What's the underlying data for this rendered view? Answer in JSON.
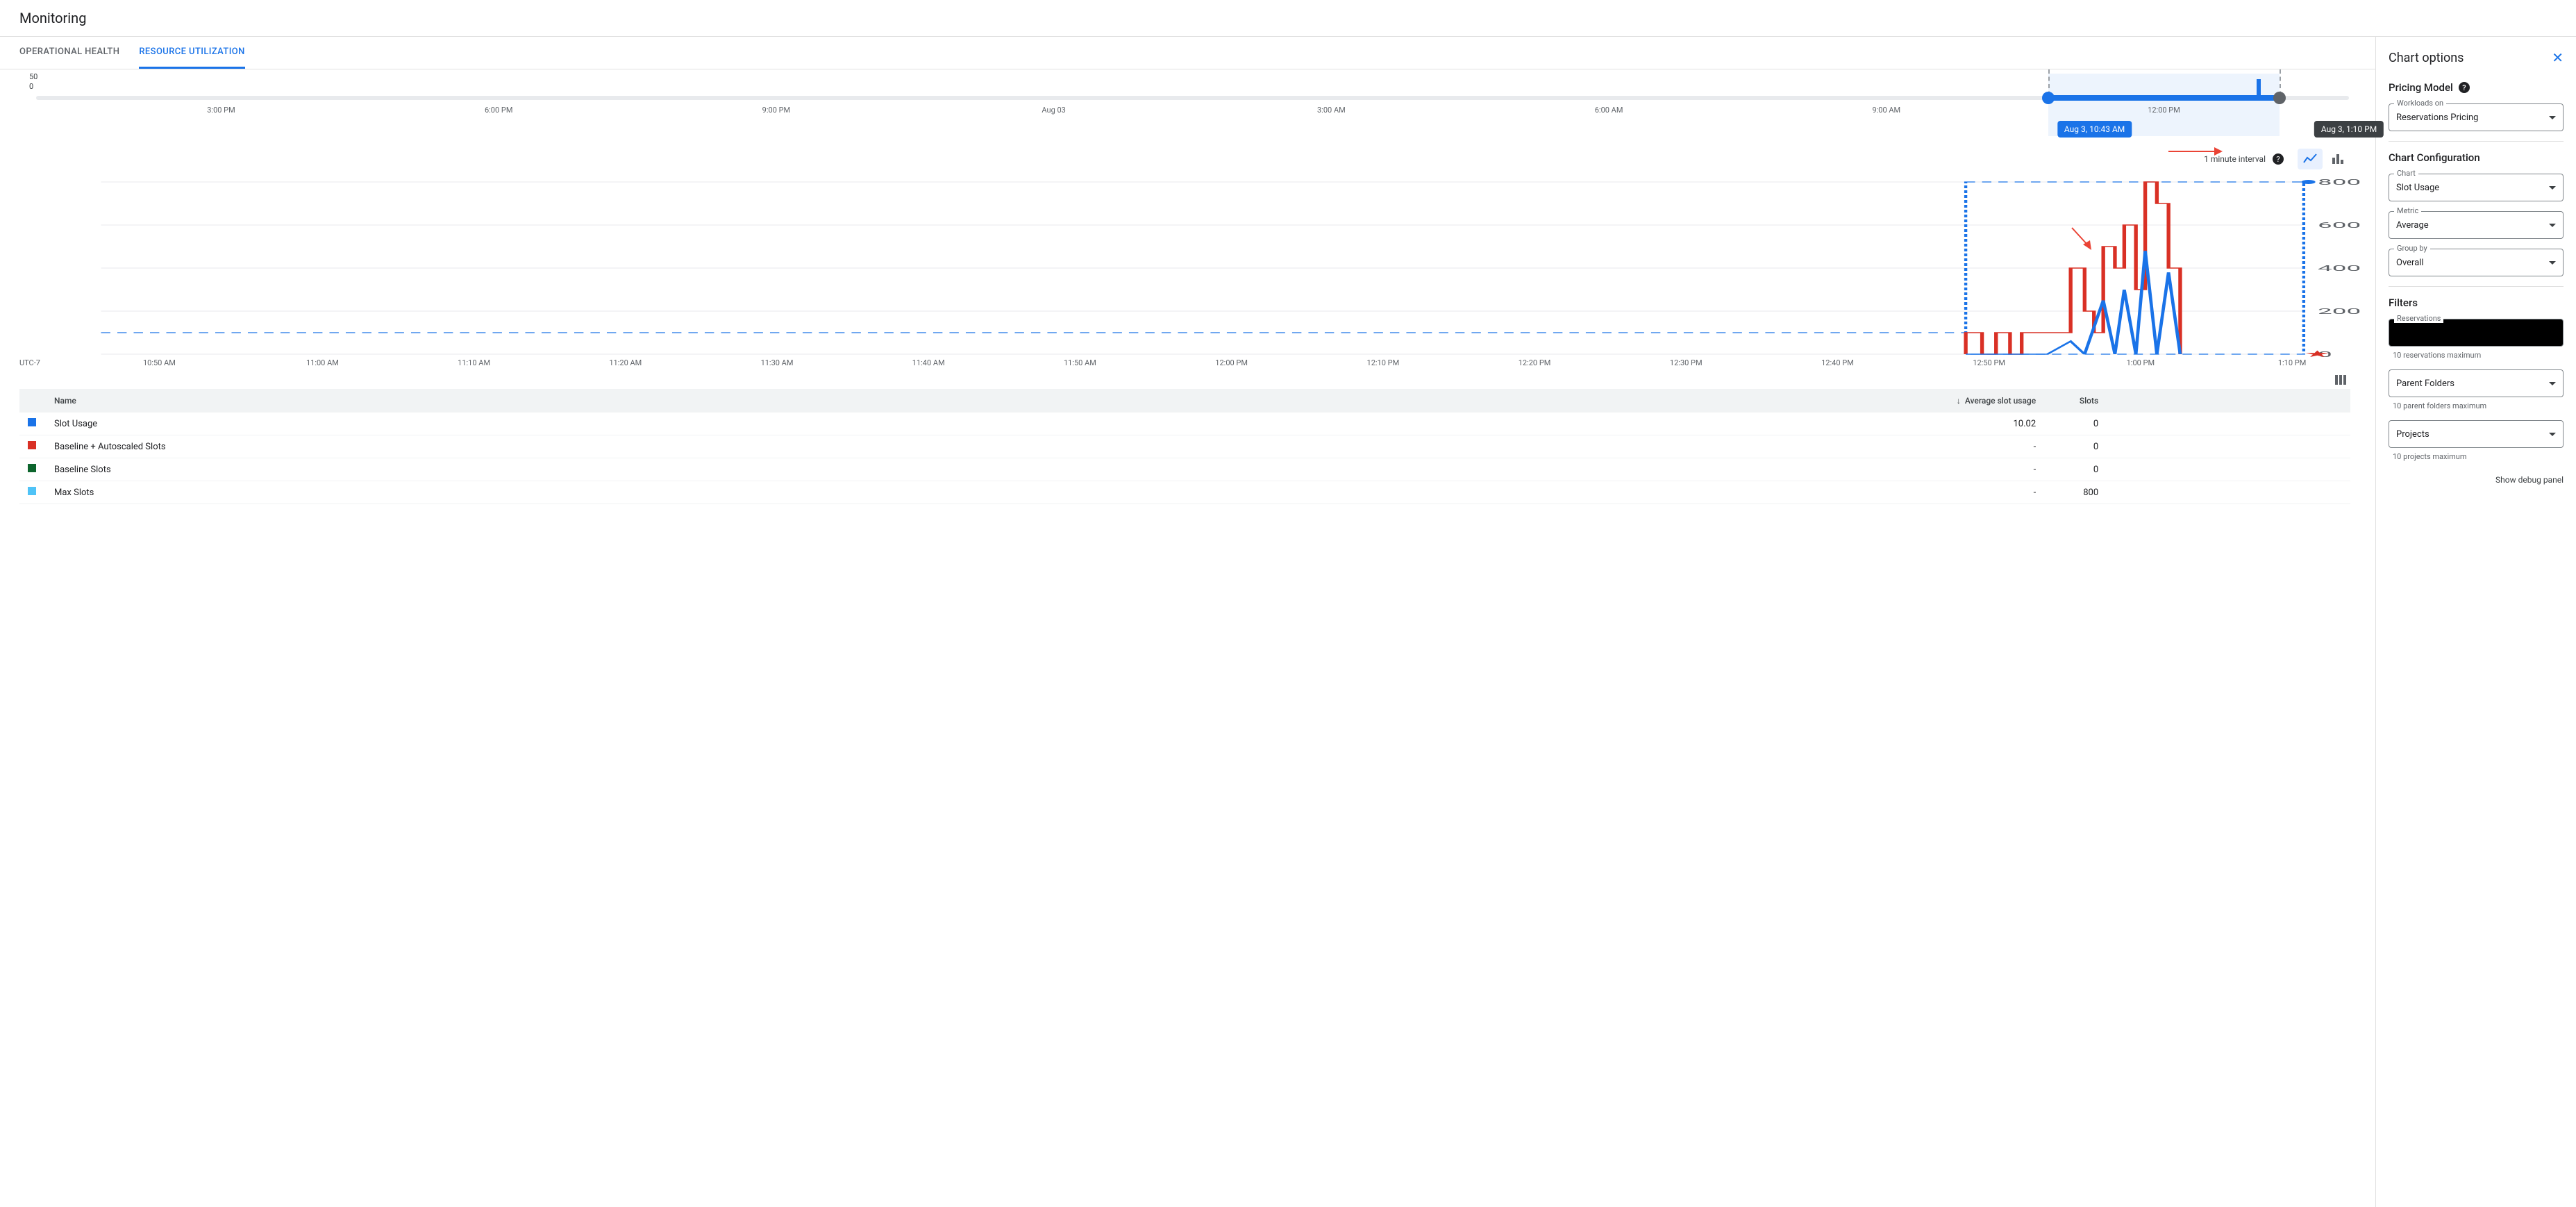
{
  "header": {
    "title": "Monitoring"
  },
  "tabs": {
    "items": [
      {
        "label": "OPERATIONAL HEALTH",
        "active": false
      },
      {
        "label": "RESOURCE UTILIZATION",
        "active": true
      }
    ]
  },
  "overview": {
    "y_ticks": [
      "50",
      "0"
    ],
    "x_ticks": [
      {
        "pct": 8,
        "label": "3:00 PM"
      },
      {
        "pct": 20,
        "label": "6:00 PM"
      },
      {
        "pct": 32,
        "label": "9:00 PM"
      },
      {
        "pct": 44,
        "label": "Aug 03"
      },
      {
        "pct": 56,
        "label": "3:00 AM"
      },
      {
        "pct": 68,
        "label": "6:00 AM"
      },
      {
        "pct": 80,
        "label": "9:00 AM"
      },
      {
        "pct": 92,
        "label": "12:00 PM"
      }
    ],
    "selection": {
      "start_pct": 87,
      "end_pct": 97,
      "start_label": "Aug 3, 10:43 AM",
      "end_label": "Aug 3, 1:10 PM"
    },
    "marker_pct": 96
  },
  "interval": {
    "text": "1 minute interval"
  },
  "chart": {
    "x_left_pct": 3.5,
    "x_right_pct": 98,
    "tz_label": "UTC-7",
    "x_ticks": [
      {
        "pct": 6,
        "label": "10:50 AM"
      },
      {
        "pct": 13,
        "label": "11:00 AM"
      },
      {
        "pct": 19.5,
        "label": "11:10 AM"
      },
      {
        "pct": 26,
        "label": "11:20 AM"
      },
      {
        "pct": 32.5,
        "label": "11:30 AM"
      },
      {
        "pct": 39,
        "label": "11:40 AM"
      },
      {
        "pct": 45.5,
        "label": "11:50 AM"
      },
      {
        "pct": 52,
        "label": "12:00 PM"
      },
      {
        "pct": 58.5,
        "label": "12:10 PM"
      },
      {
        "pct": 65,
        "label": "12:20 PM"
      },
      {
        "pct": 71.5,
        "label": "12:30 PM"
      },
      {
        "pct": 78,
        "label": "12:40 PM"
      },
      {
        "pct": 84.5,
        "label": "12:50 PM"
      },
      {
        "pct": 91,
        "label": "1:00 PM"
      },
      {
        "pct": 97.5,
        "label": "1:10 PM"
      }
    ],
    "y_ticks": [
      0,
      200,
      400,
      600,
      800
    ],
    "y_max": 800,
    "series": {
      "max_slots": {
        "value": 800,
        "color": "#d93025",
        "marker": "star"
      },
      "baseline_autoscaled": {
        "color": "#d93025",
        "steps": [
          {
            "x": 83.5,
            "y": 100
          },
          {
            "x": 84.2,
            "y": 0
          },
          {
            "x": 84.8,
            "y": 100
          },
          {
            "x": 85.4,
            "y": 0
          },
          {
            "x": 85.9,
            "y": 100
          },
          {
            "x": 87.5,
            "y": 100
          },
          {
            "x": 88.0,
            "y": 400
          },
          {
            "x": 88.6,
            "y": 200
          },
          {
            "x": 89.0,
            "y": 100
          },
          {
            "x": 89.4,
            "y": 500
          },
          {
            "x": 89.9,
            "y": 400
          },
          {
            "x": 90.3,
            "y": 600
          },
          {
            "x": 90.8,
            "y": 300
          },
          {
            "x": 91.2,
            "y": 800
          },
          {
            "x": 91.7,
            "y": 700
          },
          {
            "x": 92.2,
            "y": 400
          },
          {
            "x": 92.7,
            "y": 0
          }
        ]
      },
      "slot_usage": {
        "color": "#1a73e8",
        "points": [
          {
            "x": 83.5,
            "y": 0
          },
          {
            "x": 87.0,
            "y": 0
          },
          {
            "x": 88.0,
            "y": 60
          },
          {
            "x": 88.6,
            "y": 0
          },
          {
            "x": 89.4,
            "y": 250
          },
          {
            "x": 89.9,
            "y": 0
          },
          {
            "x": 90.3,
            "y": 300
          },
          {
            "x": 90.8,
            "y": 0
          },
          {
            "x": 91.2,
            "y": 480
          },
          {
            "x": 91.7,
            "y": 0
          },
          {
            "x": 92.2,
            "y": 380
          },
          {
            "x": 92.7,
            "y": 0
          }
        ]
      },
      "dashed_region": {
        "color": "#1a73e8",
        "x0": 83.5,
        "x1": 98,
        "y_top": 800,
        "baseline_y": 100
      }
    },
    "grid_color": "#e8eaed",
    "background": "#ffffff"
  },
  "table": {
    "columns": {
      "name": "Name",
      "avg": "Average slot usage",
      "slots": "Slots"
    },
    "rows": [
      {
        "swatch": "#1a73e8",
        "name": "Slot Usage",
        "avg": "10.02",
        "slots": "0"
      },
      {
        "swatch": "#d93025",
        "name": "Baseline + Autoscaled Slots",
        "avg": "-",
        "slots": "0"
      },
      {
        "swatch": "#0d652d",
        "name": "Baseline Slots",
        "avg": "-",
        "slots": "0"
      },
      {
        "swatch": "#4fc3f7",
        "name": "Max Slots",
        "avg": "-",
        "slots": "800"
      }
    ]
  },
  "side": {
    "title": "Chart options",
    "pricing": {
      "heading": "Pricing Model",
      "workloads_label": "Workloads on",
      "workloads_value": "Reservations Pricing"
    },
    "config": {
      "heading": "Chart Configuration",
      "chart_label": "Chart",
      "chart_value": "Slot Usage",
      "metric_label": "Metric",
      "metric_value": "Average",
      "group_label": "Group by",
      "group_value": "Overall"
    },
    "filters": {
      "heading": "Filters",
      "reservations_label": "Reservations",
      "reservations_helper": "10 reservations maximum",
      "parent_label": "Parent Folders",
      "parent_helper": "10 parent folders maximum",
      "projects_label": "Projects",
      "projects_helper": "10 projects maximum"
    },
    "debug": "Show debug panel"
  }
}
